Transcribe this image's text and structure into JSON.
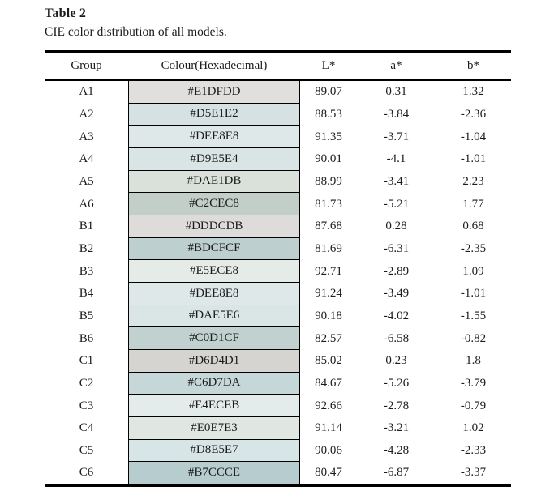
{
  "title": "Table 2",
  "caption": "CIE color distribution of all models.",
  "table": {
    "columns": [
      "Group",
      "Colour(Hexadecimal)",
      "L*",
      "a*",
      "b*"
    ],
    "rows": [
      {
        "group": "A1",
        "hex": "#E1DFDD",
        "l": "89.07",
        "a": "0.31",
        "b": "1.32"
      },
      {
        "group": "A2",
        "hex": "#D5E1E2",
        "l": "88.53",
        "a": "-3.84",
        "b": "-2.36"
      },
      {
        "group": "A3",
        "hex": "#DEE8E8",
        "l": "91.35",
        "a": "-3.71",
        "b": "-1.04"
      },
      {
        "group": "A4",
        "hex": "#D9E5E4",
        "l": "90.01",
        "a": "-4.1",
        "b": "-1.01"
      },
      {
        "group": "A5",
        "hex": "#DAE1DB",
        "l": "88.99",
        "a": "-3.41",
        "b": "2.23"
      },
      {
        "group": "A6",
        "hex": "#C2CEC8",
        "l": "81.73",
        "a": "-5.21",
        "b": "1.77"
      },
      {
        "group": "B1",
        "hex": "#DDDCDB",
        "l": "87.68",
        "a": "0.28",
        "b": "0.68"
      },
      {
        "group": "B2",
        "hex": "#BDCFCF",
        "l": "81.69",
        "a": "-6.31",
        "b": "-2.35"
      },
      {
        "group": "B3",
        "hex": "#E5ECE8",
        "l": "92.71",
        "a": "-2.89",
        "b": "1.09"
      },
      {
        "group": "B4",
        "hex": "#DEE8E8",
        "l": "91.24",
        "a": "-3.49",
        "b": "-1.01"
      },
      {
        "group": "B5",
        "hex": "#DAE5E6",
        "l": "90.18",
        "a": "-4.02",
        "b": "-1.55"
      },
      {
        "group": "B6",
        "hex": "#C0D1CF",
        "l": "82.57",
        "a": "-6.58",
        "b": "-0.82"
      },
      {
        "group": "C1",
        "hex": "#D6D4D1",
        "l": "85.02",
        "a": "0.23",
        "b": "1.8"
      },
      {
        "group": "C2",
        "hex": "#C6D7DA",
        "l": "84.67",
        "a": "-5.26",
        "b": "-3.79"
      },
      {
        "group": "C3",
        "hex": "#E4ECEB",
        "l": "92.66",
        "a": "-2.78",
        "b": "-0.79"
      },
      {
        "group": "C4",
        "hex": "#E0E7E3",
        "l": "91.14",
        "a": "-3.21",
        "b": "1.02"
      },
      {
        "group": "C5",
        "hex": "#D8E5E7",
        "l": "90.06",
        "a": "-4.28",
        "b": "-2.33"
      },
      {
        "group": "C6",
        "hex": "#B7CCCE",
        "l": "80.47",
        "a": "-6.87",
        "b": "-3.37"
      }
    ]
  }
}
